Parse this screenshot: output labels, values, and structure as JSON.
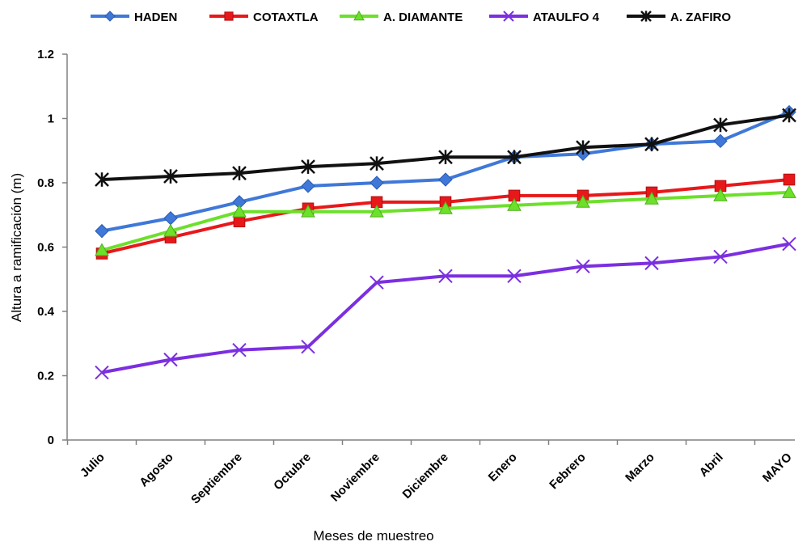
{
  "chart_data": {
    "type": "line",
    "title": "",
    "xlabel": "Meses de muestreo",
    "ylabel": "Altura a ramificación  (m)",
    "ylim": [
      0,
      1.2
    ],
    "yticks": [
      "0",
      "0.2",
      "0.4",
      "0.6",
      "0.8",
      "1",
      "1.2"
    ],
    "grid": false,
    "legend_position": "top",
    "categories": [
      "Julio",
      "Agosto",
      "Septiembre",
      "Octubre",
      "Noviembre",
      "Diciembre",
      "Enero",
      "Febrero",
      "Marzo",
      "Abril",
      "MAYO"
    ],
    "series": [
      {
        "name": "HADEN",
        "color": "#3f78d8",
        "marker": "diamond",
        "values": [
          0.65,
          0.69,
          0.74,
          0.79,
          0.8,
          0.81,
          0.88,
          0.89,
          0.92,
          0.93,
          1.02
        ]
      },
      {
        "name": "COTAXTLA",
        "color": "#e8181a",
        "marker": "square",
        "values": [
          0.58,
          0.63,
          0.68,
          0.72,
          0.74,
          0.74,
          0.76,
          0.76,
          0.77,
          0.79,
          0.81
        ]
      },
      {
        "name": "A. DIAMANTE",
        "color": "#6ce02a",
        "marker": "triangle",
        "values": [
          0.59,
          0.65,
          0.71,
          0.71,
          0.71,
          0.72,
          0.73,
          0.74,
          0.75,
          0.76,
          0.77
        ]
      },
      {
        "name": "ATAULFO 4",
        "color": "#7b2fe0",
        "marker": "x",
        "values": [
          0.21,
          0.25,
          0.28,
          0.29,
          0.49,
          0.51,
          0.51,
          0.54,
          0.55,
          0.57,
          0.61
        ]
      },
      {
        "name": "A. ZAFIRO",
        "color": "#111111",
        "marker": "star",
        "values": [
          0.81,
          0.82,
          0.83,
          0.85,
          0.86,
          0.88,
          0.88,
          0.91,
          0.92,
          0.98,
          1.01
        ]
      }
    ]
  }
}
